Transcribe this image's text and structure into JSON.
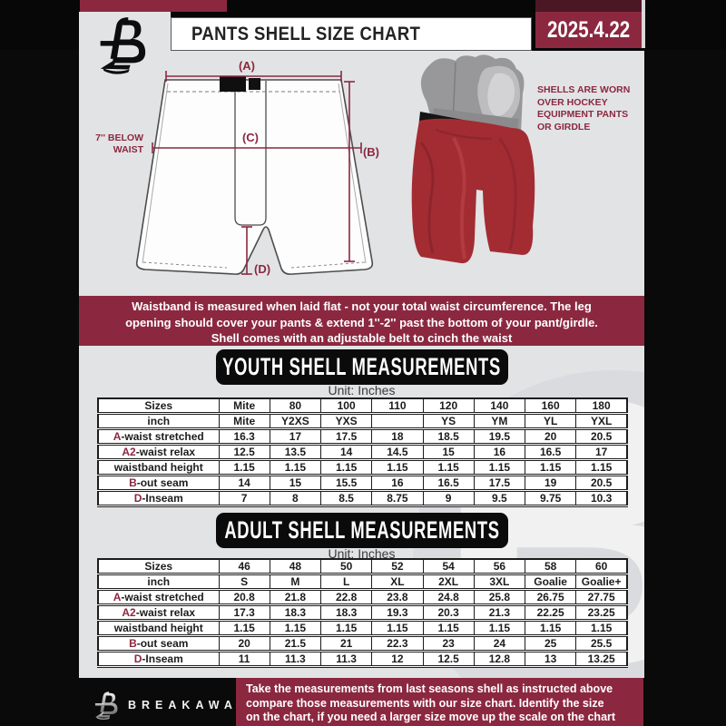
{
  "page": {
    "bg_color": "#0a0a0a",
    "content_bg": "#e2e3e5",
    "accent_maroon": "#8b2840",
    "shell_red": "#a32c33",
    "watermark_letter": "B"
  },
  "header": {
    "title": "PANTS SHELL SIZE CHART",
    "date": "2025.4.22"
  },
  "diagram": {
    "label_a": "(A)",
    "label_b": "(B)",
    "label_c": "(C)",
    "label_d": "(D)",
    "note_line1": "7'' BELOW",
    "note_line2": "WAIST"
  },
  "photo": {
    "caption": "SHELLS ARE WORN OVER HOCKEY EQUIPMENT PANTS OR GIRDLE"
  },
  "info_banner": {
    "line1": "Waistband is measured when laid flat - not your total waist circumference. The leg",
    "line2": "opening should cover your pants & extend 1''-2'' past the bottom of your pant/girdle.",
    "line3": "Shell comes with an adjustable belt to cinch the waist"
  },
  "youth": {
    "banner": "YOUTH SHELL MEASUREMENTS",
    "unit": "Unit: Inches",
    "rows": [
      {
        "prefix": "",
        "label": "Sizes",
        "values": [
          "Mite",
          "80",
          "100",
          "110",
          "120",
          "140",
          "160",
          "180"
        ]
      },
      {
        "prefix": "",
        "label": "inch",
        "values": [
          "Mite",
          "Y2XS",
          "YXS",
          "",
          "YS",
          "YM",
          "YL",
          "YXL"
        ]
      },
      {
        "prefix": "A",
        "label": "-waist stretched",
        "values": [
          "16.3",
          "17",
          "17.5",
          "18",
          "18.5",
          "19.5",
          "20",
          "20.5"
        ]
      },
      {
        "prefix": "A2",
        "label": "-waist relax",
        "values": [
          "12.5",
          "13.5",
          "14",
          "14.5",
          "15",
          "16",
          "16.5",
          "17"
        ]
      },
      {
        "prefix": "",
        "label": "waistband height",
        "values": [
          "1.15",
          "1.15",
          "1.15",
          "1.15",
          "1.15",
          "1.15",
          "1.15",
          "1.15"
        ]
      },
      {
        "prefix": "B",
        "label": "-out seam",
        "values": [
          "14",
          "15",
          "15.5",
          "16",
          "16.5",
          "17.5",
          "19",
          "20.5"
        ]
      },
      {
        "prefix": "D",
        "label": "-Inseam",
        "values": [
          "7",
          "8",
          "8.5",
          "8.75",
          "9",
          "9.5",
          "9.75",
          "10.3"
        ]
      }
    ]
  },
  "adult": {
    "banner": "ADULT SHELL MEASUREMENTS",
    "unit": "Unit: Inches",
    "rows": [
      {
        "prefix": "",
        "label": "Sizes",
        "values": [
          "46",
          "48",
          "50",
          "52",
          "54",
          "56",
          "58",
          "60"
        ]
      },
      {
        "prefix": "",
        "label": "inch",
        "values": [
          "S",
          "M",
          "L",
          "XL",
          "2XL",
          "3XL",
          "Goalie",
          "Goalie+"
        ]
      },
      {
        "prefix": "A",
        "label": "-waist stretched",
        "values": [
          "20.8",
          "21.8",
          "22.8",
          "23.8",
          "24.8",
          "25.8",
          "26.75",
          "27.75"
        ]
      },
      {
        "prefix": "A2",
        "label": "-waist relax",
        "values": [
          "17.3",
          "18.3",
          "18.3",
          "19.3",
          "20.3",
          "21.3",
          "22.25",
          "23.25"
        ]
      },
      {
        "prefix": "",
        "label": "waistband height",
        "values": [
          "1.15",
          "1.15",
          "1.15",
          "1.15",
          "1.15",
          "1.15",
          "1.15",
          "1.15"
        ]
      },
      {
        "prefix": "B",
        "label": "-out seam",
        "values": [
          "20",
          "21.5",
          "21",
          "22.3",
          "23",
          "24",
          "25",
          "25.5"
        ]
      },
      {
        "prefix": "D",
        "label": "-Inseam",
        "values": [
          "11",
          "11.3",
          "11.3",
          "12",
          "12.5",
          "12.8",
          "13",
          "13.25"
        ]
      }
    ]
  },
  "footer": {
    "brand": "BREAKAWAY",
    "line1": "Take the measurements from last seasons shell as instructed above",
    "line2": "compare those measurements  with our size chart. Identify the size",
    "line3": "on the chart, if you need a larger size move up the scale on the chart"
  }
}
